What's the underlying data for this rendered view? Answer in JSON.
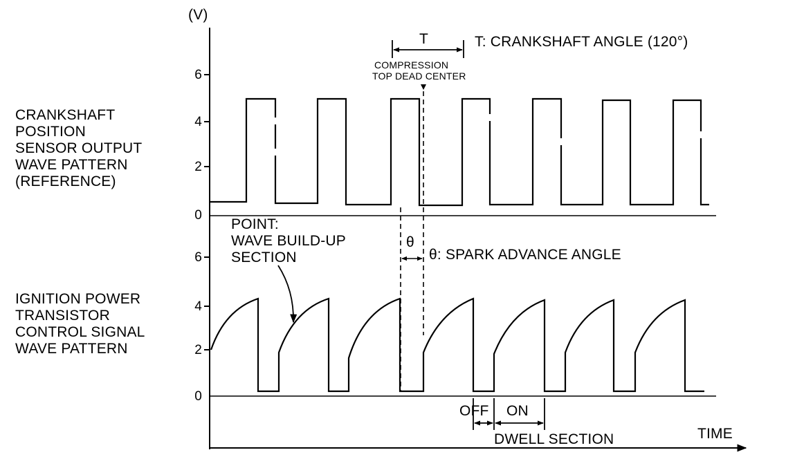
{
  "unit_label": "(V)",
  "period": {
    "symbol": "T",
    "legend": "T: CRANKSHAFT ANGLE (120°)"
  },
  "tdc_label_line1": "COMPRESSION",
  "tdc_label_line2": "TOP DEAD CENTER",
  "crank_label": {
    "line1": "CRANKSHAFT",
    "line2": "POSITION",
    "line3": "SENSOR  OUTPUT",
    "line4": "WAVE PATTERN",
    "line5": "(REFERENCE)"
  },
  "ign_label": {
    "line1": "IGNITION POWER",
    "line2": "TRANSISTOR",
    "line3": "CONTROL SIGNAL",
    "line4": "WAVE PATTERN"
  },
  "point_label": {
    "line1": "POINT:",
    "line2": "WAVE BUILD-UP",
    "line3": "SECTION"
  },
  "theta": {
    "symbol": "θ",
    "legend": "θ: SPARK ADVANCE ANGLE"
  },
  "off_label": "OFF",
  "on_label": "ON",
  "dwell_label": "DWELL SECTION",
  "time_label": "TIME",
  "upper_axis_ticks": [
    "0",
    "2",
    "4",
    "6"
  ],
  "lower_axis_ticks": [
    "0",
    "2",
    "4",
    "6"
  ],
  "colors": {
    "ink": "#000000",
    "paper": "#ffffff"
  }
}
